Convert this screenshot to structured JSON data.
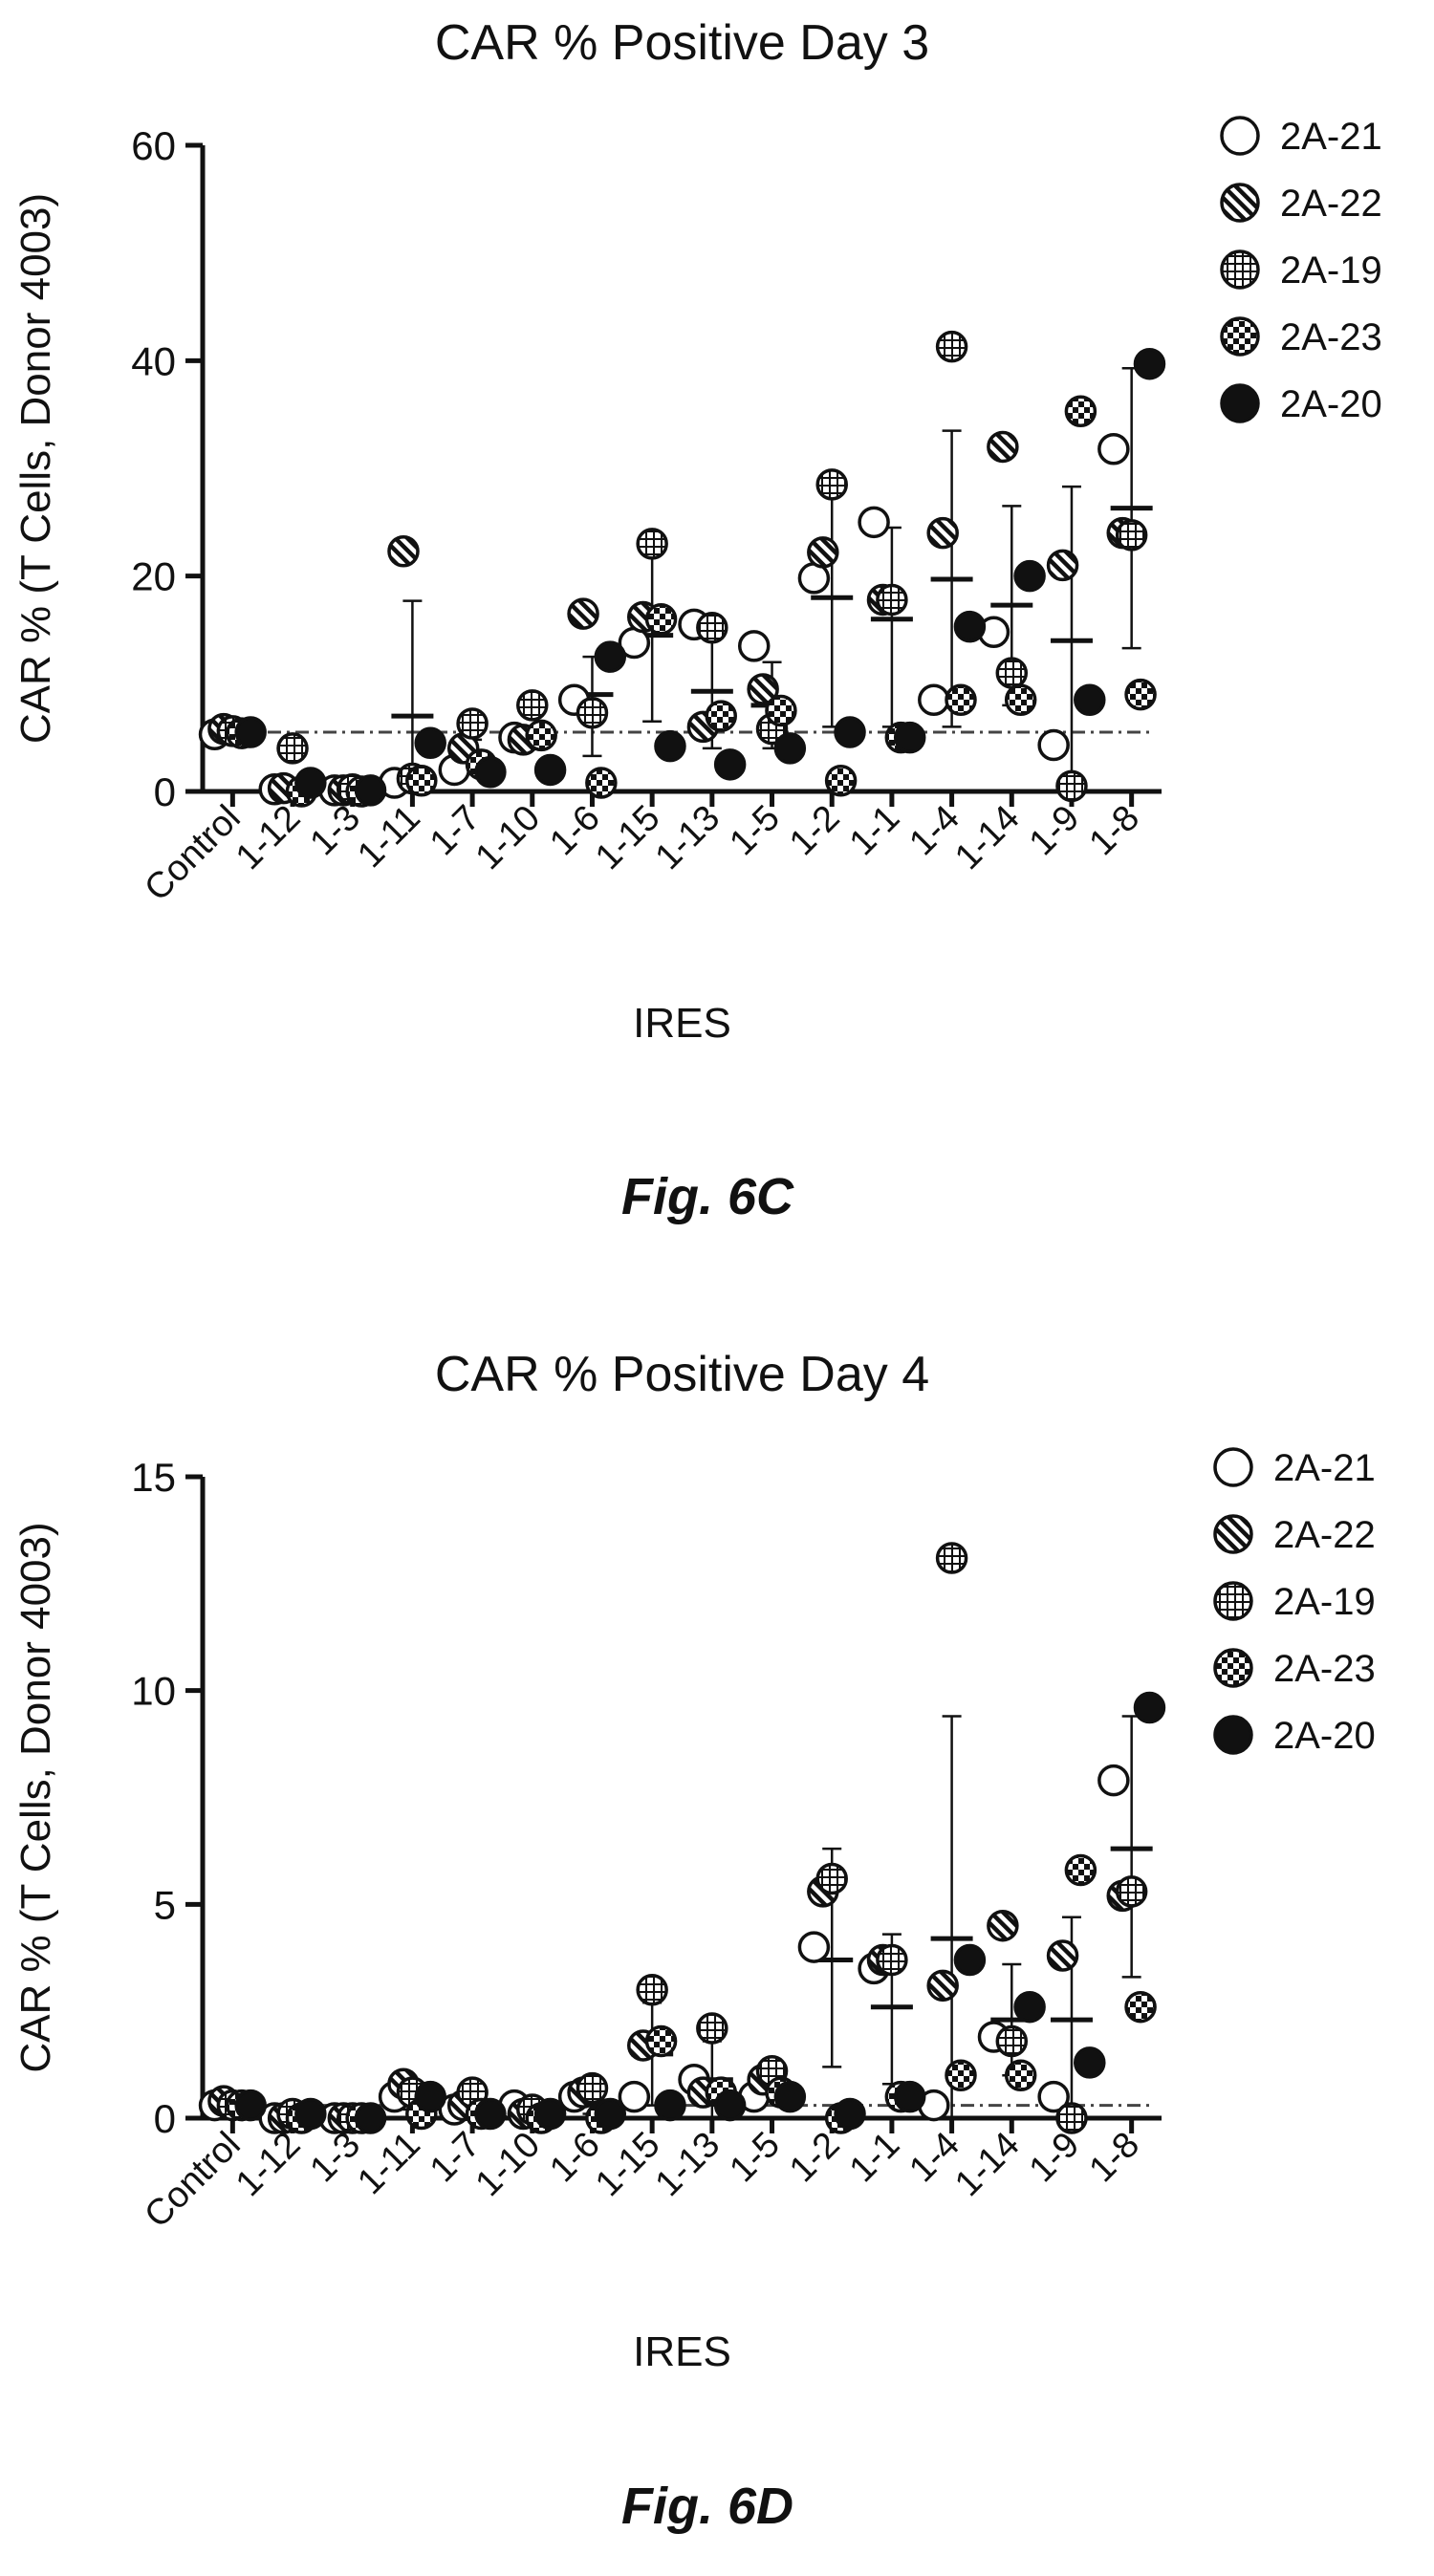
{
  "chart_data": [
    {
      "type": "scatter",
      "title": "CAR % Positive Day 3",
      "xlabel": "IRES",
      "ylabel": "CAR % (T Cells, Donor 4003)",
      "caption": "Fig. 6C",
      "ylim": [
        0,
        60
      ],
      "yticks": [
        0,
        20,
        40,
        60
      ],
      "reference_line": 5.5,
      "legend_position": "top-right",
      "categories": [
        "Control",
        "1-12",
        "1-3",
        "1-11",
        "1-7",
        "1-10",
        "1-6",
        "1-15",
        "1-13",
        "1-5",
        "1-2",
        "1-1",
        "1-4",
        "1-14",
        "1-9",
        "1-8"
      ],
      "series": [
        {
          "name": "2A-21",
          "pattern": "open",
          "values": [
            5.3,
            0.2,
            0.1,
            0.8,
            2.0,
            5.0,
            8.5,
            13.8,
            15.5,
            13.5,
            19.8,
            25.0,
            8.5,
            14.8,
            4.3,
            31.8
          ]
        },
        {
          "name": "2A-22",
          "pattern": "hatched",
          "values": [
            5.8,
            0.3,
            0.1,
            22.3,
            4.0,
            4.8,
            16.5,
            16.2,
            6.0,
            9.5,
            22.2,
            17.8,
            24.0,
            32.0,
            21.0,
            24.0
          ]
        },
        {
          "name": "2A-19",
          "pattern": "grid",
          "values": [
            5.6,
            4.0,
            0.2,
            1.2,
            6.3,
            8.0,
            7.3,
            23.0,
            15.2,
            5.8,
            28.5,
            17.8,
            41.3,
            11.0,
            0.5,
            23.8
          ]
        },
        {
          "name": "2A-23",
          "pattern": "checker",
          "values": [
            5.4,
            0.0,
            0.0,
            1.0,
            2.5,
            5.2,
            0.8,
            16.0,
            7.0,
            7.5,
            1.0,
            5.0,
            8.5,
            8.5,
            35.3,
            9.0
          ]
        },
        {
          "name": "2A-20",
          "pattern": "filled",
          "values": [
            5.5,
            0.8,
            0.1,
            4.5,
            1.8,
            2.0,
            12.5,
            4.2,
            2.5,
            4.0,
            5.5,
            5.0,
            15.3,
            20.0,
            8.5,
            39.7
          ]
        }
      ],
      "means": [
        5.5,
        1.0,
        0.1,
        7.0,
        3.3,
        5.0,
        9.0,
        14.5,
        9.3,
        8.0,
        18.0,
        16.0,
        19.7,
        17.3,
        14.0,
        26.3
      ],
      "error_upper": [
        5.5,
        1.0,
        0.1,
        17.7,
        4.8,
        6.0,
        12.5,
        22.5,
        14.5,
        12.0,
        29.0,
        24.5,
        33.5,
        26.5,
        28.3,
        39.3
      ],
      "error_lower": [
        5.5,
        1.0,
        0.1,
        0.0,
        1.8,
        4.0,
        3.3,
        6.5,
        4.0,
        4.0,
        6.0,
        6.0,
        6.0,
        8.0,
        0.0,
        13.3
      ]
    },
    {
      "type": "scatter",
      "title": "CAR % Positive Day 4",
      "xlabel": "IRES",
      "ylabel": "CAR % (T Cells, Donor 4003)",
      "caption": "Fig. 6D",
      "ylim": [
        0,
        15
      ],
      "yticks": [
        0,
        5,
        10,
        15
      ],
      "reference_line": 0.3,
      "legend_position": "top-right",
      "categories": [
        "Control",
        "1-12",
        "1-3",
        "1-11",
        "1-7",
        "1-10",
        "1-6",
        "1-15",
        "1-13",
        "1-5",
        "1-2",
        "1-1",
        "1-4",
        "1-14",
        "1-9",
        "1-8"
      ],
      "series": [
        {
          "name": "2A-21",
          "pattern": "open",
          "values": [
            0.3,
            0.0,
            0.0,
            0.5,
            0.2,
            0.3,
            0.5,
            0.5,
            0.9,
            0.5,
            4.0,
            3.5,
            0.3,
            1.9,
            0.5,
            7.9
          ]
        },
        {
          "name": "2A-22",
          "pattern": "hatched",
          "values": [
            0.4,
            0.0,
            0.0,
            0.8,
            0.3,
            0.1,
            0.6,
            1.7,
            0.6,
            0.9,
            5.3,
            3.7,
            3.1,
            4.5,
            3.8,
            5.2
          ]
        },
        {
          "name": "2A-19",
          "pattern": "grid",
          "values": [
            0.3,
            0.1,
            0.0,
            0.6,
            0.6,
            0.2,
            0.7,
            3.0,
            2.1,
            1.1,
            5.6,
            3.7,
            13.1,
            1.8,
            0.0,
            5.3
          ]
        },
        {
          "name": "2A-23",
          "pattern": "checker",
          "values": [
            0.3,
            0.0,
            0.0,
            0.1,
            0.1,
            0.0,
            0.0,
            1.8,
            0.6,
            0.6,
            0.0,
            0.5,
            1.0,
            1.0,
            5.8,
            2.6
          ]
        },
        {
          "name": "2A-20",
          "pattern": "filled",
          "values": [
            0.3,
            0.1,
            0.0,
            0.5,
            0.1,
            0.1,
            0.1,
            0.3,
            0.3,
            0.5,
            0.1,
            0.5,
            3.7,
            2.6,
            1.3,
            9.6
          ]
        }
      ],
      "means": [
        0.3,
        0.05,
        0.0,
        0.5,
        0.3,
        0.15,
        0.4,
        1.5,
        0.9,
        0.7,
        3.7,
        2.6,
        4.2,
        2.3,
        2.3,
        6.3
      ],
      "error_upper": [
        0.3,
        0.05,
        0.0,
        0.8,
        0.5,
        0.3,
        0.7,
        2.7,
        1.8,
        1.0,
        6.3,
        4.3,
        9.4,
        3.6,
        4.7,
        9.4
      ],
      "error_lower": [
        0.3,
        0.05,
        0.0,
        0.2,
        0.1,
        0.0,
        0.1,
        0.3,
        0.0,
        0.4,
        1.2,
        0.8,
        0.0,
        1.0,
        0.0,
        3.3
      ]
    }
  ]
}
